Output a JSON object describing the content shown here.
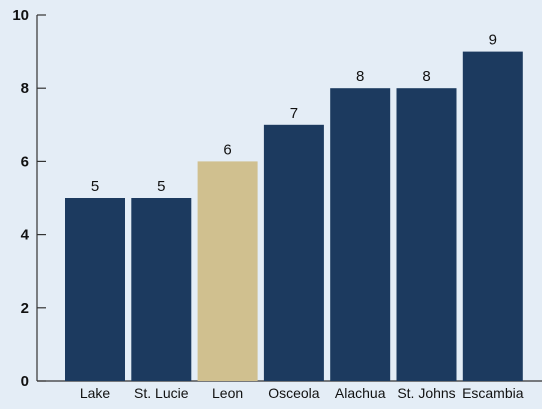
{
  "chart_data": {
    "type": "bar",
    "title": "",
    "xlabel": "",
    "ylabel": "",
    "categories": [
      "Lake",
      "St. Lucie",
      "Leon",
      "Osceola",
      "Alachua",
      "St. Johns",
      "Escambia"
    ],
    "values": [
      5,
      5,
      6,
      7,
      8,
      8,
      9
    ],
    "data_labels": [
      "5",
      "5",
      "6",
      "7",
      "8",
      "8",
      "9"
    ],
    "highlight_category": "Leon",
    "ylim": [
      0,
      10
    ],
    "yticks": [
      0,
      2,
      4,
      6,
      8,
      10
    ],
    "ytick_labels": [
      "0",
      "2",
      "4",
      "6",
      "8",
      "10"
    ],
    "grid": false,
    "legend": "none"
  },
  "colors": {
    "background": "#e4edf6",
    "bar": "#1c3a5f",
    "highlight_bar": "#d0c08f",
    "axis": "#333333",
    "text": "#111111"
  }
}
